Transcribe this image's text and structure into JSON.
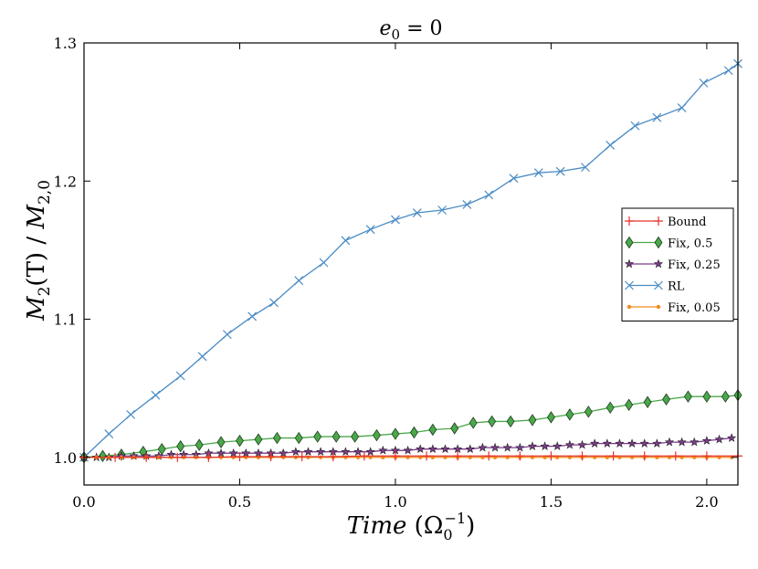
{
  "chart_data": {
    "type": "line",
    "title": "e_0 = 0",
    "title_display": {
      "base": "e",
      "sub": "0",
      "rest": " = 0"
    },
    "xlabel": "Time (Ω_0^-1)",
    "xlabel_display": {
      "italic": "Time",
      "paren_open": " (",
      "omega": "Ω",
      "sub": "0",
      "sup": "−1",
      "paren_close": ")"
    },
    "ylabel": "M_2(T) / M_2,0",
    "ylabel_display": {
      "m1": "M",
      "sub1": "2",
      "mid": "(T) / ",
      "m2": "M",
      "sub2": "2,0"
    },
    "xlim": [
      0.0,
      2.1
    ],
    "ylim": [
      0.98,
      1.3
    ],
    "xticks": [
      0.0,
      0.5,
      1.0,
      1.5,
      2.0
    ],
    "xtick_labels": [
      "0.0",
      "0.5",
      "1.0",
      "1.5",
      "2.0"
    ],
    "yticks": [
      1.0,
      1.1,
      1.2,
      1.3
    ],
    "ytick_labels": [
      "1.0",
      "1.1",
      "1.2",
      "1.3"
    ],
    "legend_position": "center-right",
    "series": [
      {
        "name": "Bound",
        "label": "Bound",
        "color": "#e8312a",
        "marker": "plus",
        "x": [
          0.0,
          0.1,
          0.2,
          0.3,
          0.4,
          0.5,
          0.6,
          0.7,
          0.8,
          0.9,
          1.0,
          1.1,
          1.2,
          1.3,
          1.4,
          1.5,
          1.6,
          1.7,
          1.8,
          1.9,
          2.0,
          2.1
        ],
        "y": [
          1.0,
          1.0,
          1.0,
          1.0,
          1.0,
          1.0005,
          1.0005,
          1.0005,
          1.0005,
          1.001,
          1.001,
          1.001,
          1.001,
          1.001,
          1.001,
          1.001,
          1.001,
          1.001,
          1.001,
          1.001,
          1.001,
          1.001
        ]
      },
      {
        "name": "Fix, 0.5",
        "label": "Fix, 0.5",
        "color": "#4aa84a",
        "marker": "diamond",
        "x": [
          0.0,
          0.06,
          0.12,
          0.19,
          0.25,
          0.31,
          0.37,
          0.44,
          0.5,
          0.56,
          0.62,
          0.69,
          0.75,
          0.81,
          0.87,
          0.94,
          1.0,
          1.06,
          1.12,
          1.19,
          1.25,
          1.31,
          1.37,
          1.44,
          1.5,
          1.56,
          1.62,
          1.69,
          1.75,
          1.81,
          1.87,
          1.94,
          2.0,
          2.06,
          2.1
        ],
        "y": [
          1.0,
          1.001,
          1.002,
          1.004,
          1.006,
          1.008,
          1.009,
          1.011,
          1.012,
          1.013,
          1.014,
          1.014,
          1.015,
          1.015,
          1.015,
          1.016,
          1.017,
          1.018,
          1.02,
          1.021,
          1.025,
          1.026,
          1.026,
          1.027,
          1.029,
          1.031,
          1.033,
          1.036,
          1.038,
          1.04,
          1.042,
          1.044,
          1.044,
          1.044,
          1.045
        ]
      },
      {
        "name": "Fix, 0.25",
        "label": "Fix, 0.25",
        "color": "#7b3c8a",
        "marker": "star",
        "x": [
          0.0,
          0.04,
          0.08,
          0.12,
          0.16,
          0.2,
          0.24,
          0.28,
          0.32,
          0.36,
          0.4,
          0.44,
          0.48,
          0.52,
          0.56,
          0.6,
          0.64,
          0.68,
          0.72,
          0.76,
          0.8,
          0.84,
          0.88,
          0.92,
          0.96,
          1.0,
          1.04,
          1.08,
          1.12,
          1.16,
          1.2,
          1.24,
          1.28,
          1.32,
          1.36,
          1.4,
          1.44,
          1.48,
          1.52,
          1.56,
          1.6,
          1.64,
          1.68,
          1.72,
          1.76,
          1.8,
          1.84,
          1.88,
          1.92,
          1.96,
          2.0,
          2.04,
          2.08
        ],
        "y": [
          1.0,
          1.0,
          1.0,
          1.001,
          1.001,
          1.001,
          1.001,
          1.002,
          1.002,
          1.002,
          1.003,
          1.003,
          1.003,
          1.003,
          1.003,
          1.003,
          1.003,
          1.004,
          1.004,
          1.004,
          1.004,
          1.004,
          1.004,
          1.004,
          1.005,
          1.005,
          1.005,
          1.006,
          1.006,
          1.006,
          1.006,
          1.006,
          1.007,
          1.007,
          1.007,
          1.007,
          1.008,
          1.008,
          1.008,
          1.009,
          1.009,
          1.01,
          1.01,
          1.01,
          1.01,
          1.01,
          1.01,
          1.011,
          1.011,
          1.011,
          1.012,
          1.013,
          1.014
        ]
      },
      {
        "name": "RL",
        "label": "RL",
        "color": "#4a8bc4",
        "marker": "x",
        "x": [
          0.0,
          0.08,
          0.15,
          0.23,
          0.31,
          0.38,
          0.46,
          0.54,
          0.61,
          0.69,
          0.77,
          0.84,
          0.92,
          1.0,
          1.07,
          1.15,
          1.23,
          1.3,
          1.38,
          1.46,
          1.53,
          1.61,
          1.69,
          1.77,
          1.84,
          1.92,
          1.99,
          2.07,
          2.1
        ],
        "y": [
          1.0,
          1.017,
          1.031,
          1.045,
          1.059,
          1.073,
          1.089,
          1.102,
          1.112,
          1.128,
          1.141,
          1.157,
          1.165,
          1.172,
          1.177,
          1.179,
          1.183,
          1.19,
          1.202,
          1.206,
          1.207,
          1.21,
          1.226,
          1.24,
          1.246,
          1.253,
          1.271,
          1.28,
          1.285
        ]
      },
      {
        "name": "Fix, 0.05",
        "label": "Fix, 0.05",
        "color": "#f08a1c",
        "marker": "dot",
        "x": [
          0.0,
          0.04,
          0.08,
          0.12,
          0.16,
          0.2,
          0.24,
          0.28,
          0.32,
          0.36,
          0.4,
          0.44,
          0.48,
          0.52,
          0.56,
          0.6,
          0.64,
          0.68,
          0.72,
          0.76,
          0.8,
          0.84,
          0.88,
          0.92,
          0.96,
          1.0,
          1.04,
          1.08,
          1.12,
          1.16,
          1.2,
          1.24,
          1.28,
          1.32,
          1.36,
          1.4,
          1.44,
          1.48,
          1.52,
          1.56,
          1.6,
          1.64,
          1.68,
          1.72,
          1.76,
          1.8,
          1.84,
          1.88,
          1.92,
          1.96,
          2.0,
          2.04,
          2.08
        ],
        "y": [
          1.0,
          1.0,
          1.0,
          1.0,
          1.0,
          1.0,
          1.0,
          1.0,
          1.0,
          1.0,
          1.0,
          1.0,
          1.0,
          1.0,
          1.0,
          1.0,
          1.0,
          1.0,
          1.0,
          1.0,
          1.0,
          1.0,
          1.0,
          1.0,
          1.0,
          1.0,
          1.0,
          1.0,
          1.0,
          1.0,
          1.0,
          1.0,
          1.0,
          1.0,
          1.0,
          1.0,
          1.0,
          1.0,
          1.0,
          1.0,
          1.0,
          1.0,
          1.0,
          1.0,
          1.0,
          1.0,
          1.0,
          1.0,
          1.0,
          1.0,
          1.0,
          1.0,
          1.0
        ]
      }
    ]
  }
}
